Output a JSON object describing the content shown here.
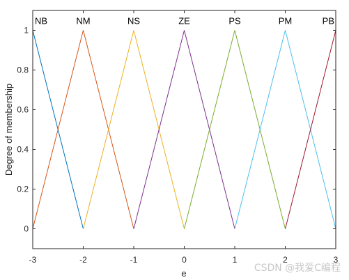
{
  "chart_data": {
    "type": "line",
    "title": "",
    "xlabel": "e",
    "ylabel": "Degree of membership",
    "xlim": [
      -3,
      3
    ],
    "ylim": [
      -0.1,
      1.1
    ],
    "xticks": [
      "-3",
      "-2",
      "-1",
      "0",
      "1",
      "2",
      "3"
    ],
    "yticks": [
      "0",
      "0.2",
      "0.4",
      "0.6",
      "0.8",
      "1"
    ],
    "grid": false,
    "series": [
      {
        "name": "NB",
        "x": [
          -3,
          -3,
          -2
        ],
        "y": [
          0,
          1,
          0
        ],
        "color": "#0072BD"
      },
      {
        "name": "NM",
        "x": [
          -3,
          -2,
          -1
        ],
        "y": [
          0,
          1,
          0
        ],
        "color": "#D95319"
      },
      {
        "name": "NS",
        "x": [
          -2,
          -1,
          0
        ],
        "y": [
          0,
          1,
          0
        ],
        "color": "#EDB120"
      },
      {
        "name": "ZE",
        "x": [
          -1,
          0,
          1
        ],
        "y": [
          0,
          1,
          0
        ],
        "color": "#7E2F8E"
      },
      {
        "name": "PS",
        "x": [
          0,
          1,
          2
        ],
        "y": [
          0,
          1,
          0
        ],
        "color": "#77AC30"
      },
      {
        "name": "PM",
        "x": [
          1,
          2,
          3
        ],
        "y": [
          0,
          1,
          0
        ],
        "color": "#4DBEEE"
      },
      {
        "name": "PB",
        "x": [
          2,
          3,
          3
        ],
        "y": [
          0,
          1,
          0
        ],
        "color": "#A2142F"
      }
    ]
  },
  "watermark": "CSDN @我爱C编程"
}
